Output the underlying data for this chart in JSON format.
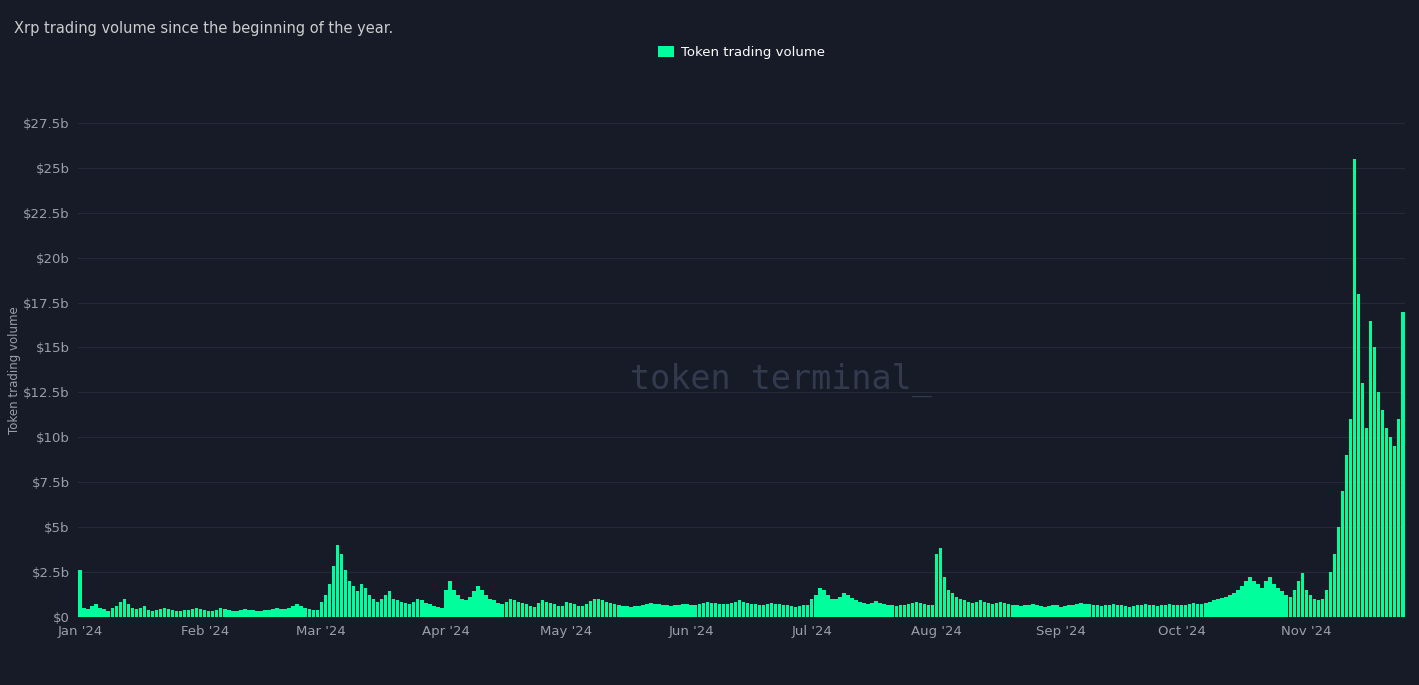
{
  "title": "Xrp trading volume since the beginning of the year.",
  "ylabel": "Token trading volume",
  "legend_label": "Token trading volume",
  "bar_color": "#00FF9C",
  "bg_color": "#161B27",
  "ax_bg_color": "#161B27",
  "text_color": "#9B9EAB",
  "title_color": "#cccccc",
  "grid_color": "#252A38",
  "watermark": "token terminal_",
  "ylim": [
    0,
    27500000000
  ],
  "yticks": [
    0,
    2500000000,
    5000000000,
    7500000000,
    10000000000,
    12500000000,
    15000000000,
    17500000000,
    20000000000,
    22500000000,
    25000000000,
    27500000000
  ],
  "ytick_labels": [
    "$0",
    "$2.5b",
    "$5b",
    "$7.5b",
    "$10b",
    "$12.5b",
    "$15b",
    "$17.5b",
    "$20b",
    "$22.5b",
    "$25b",
    "$27.5b"
  ],
  "values": [
    2600000000,
    500000000,
    400000000,
    600000000,
    700000000,
    500000000,
    400000000,
    300000000,
    500000000,
    600000000,
    800000000,
    1000000000,
    700000000,
    500000000,
    400000000,
    450000000,
    600000000,
    350000000,
    300000000,
    350000000,
    400000000,
    500000000,
    400000000,
    350000000,
    300000000,
    280000000,
    350000000,
    380000000,
    400000000,
    450000000,
    420000000,
    350000000,
    320000000,
    300000000,
    380000000,
    500000000,
    400000000,
    350000000,
    320000000,
    300000000,
    350000000,
    400000000,
    380000000,
    350000000,
    320000000,
    300000000,
    350000000,
    380000000,
    400000000,
    450000000,
    420000000,
    400000000,
    500000000,
    600000000,
    700000000,
    600000000,
    480000000,
    400000000,
    380000000,
    350000000,
    800000000,
    1200000000,
    1800000000,
    2800000000,
    4000000000,
    3500000000,
    2600000000,
    2000000000,
    1700000000,
    1400000000,
    1800000000,
    1600000000,
    1200000000,
    1000000000,
    800000000,
    1000000000,
    1200000000,
    1400000000,
    1000000000,
    900000000,
    800000000,
    750000000,
    700000000,
    800000000,
    1000000000,
    900000000,
    750000000,
    700000000,
    600000000,
    550000000,
    500000000,
    1500000000,
    2000000000,
    1500000000,
    1200000000,
    1000000000,
    900000000,
    1100000000,
    1400000000,
    1700000000,
    1500000000,
    1200000000,
    1000000000,
    900000000,
    750000000,
    700000000,
    800000000,
    1000000000,
    900000000,
    800000000,
    750000000,
    700000000,
    600000000,
    550000000,
    750000000,
    900000000,
    800000000,
    750000000,
    700000000,
    600000000,
    580000000,
    800000000,
    750000000,
    700000000,
    600000000,
    580000000,
    700000000,
    850000000,
    1000000000,
    950000000,
    900000000,
    800000000,
    750000000,
    700000000,
    650000000,
    600000000,
    580000000,
    550000000,
    580000000,
    600000000,
    650000000,
    700000000,
    750000000,
    720000000,
    700000000,
    650000000,
    620000000,
    580000000,
    620000000,
    650000000,
    700000000,
    720000000,
    650000000,
    620000000,
    700000000,
    750000000,
    820000000,
    780000000,
    750000000,
    720000000,
    700000000,
    700000000,
    750000000,
    820000000,
    900000000,
    820000000,
    750000000,
    720000000,
    700000000,
    650000000,
    620000000,
    700000000,
    750000000,
    720000000,
    700000000,
    650000000,
    620000000,
    580000000,
    550000000,
    580000000,
    620000000,
    650000000,
    1000000000,
    1200000000,
    1600000000,
    1500000000,
    1200000000,
    1000000000,
    950000000,
    1100000000,
    1300000000,
    1200000000,
    1050000000,
    900000000,
    820000000,
    750000000,
    700000000,
    750000000,
    850000000,
    750000000,
    700000000,
    650000000,
    620000000,
    580000000,
    620000000,
    650000000,
    700000000,
    750000000,
    820000000,
    750000000,
    700000000,
    650000000,
    620000000,
    3500000000,
    3800000000,
    2200000000,
    1500000000,
    1300000000,
    1100000000,
    950000000,
    900000000,
    820000000,
    750000000,
    820000000,
    900000000,
    820000000,
    750000000,
    700000000,
    750000000,
    820000000,
    750000000,
    700000000,
    650000000,
    620000000,
    580000000,
    620000000,
    650000000,
    700000000,
    620000000,
    580000000,
    550000000,
    580000000,
    620000000,
    650000000,
    550000000,
    580000000,
    620000000,
    650000000,
    700000000,
    750000000,
    720000000,
    700000000,
    650000000,
    620000000,
    580000000,
    620000000,
    650000000,
    700000000,
    650000000,
    620000000,
    580000000,
    550000000,
    580000000,
    620000000,
    650000000,
    700000000,
    650000000,
    620000000,
    580000000,
    620000000,
    650000000,
    700000000,
    650000000,
    620000000,
    620000000,
    650000000,
    700000000,
    750000000,
    720000000,
    700000000,
    750000000,
    820000000,
    900000000,
    950000000,
    1050000000,
    1100000000,
    1200000000,
    1300000000,
    1500000000,
    1700000000,
    2000000000,
    2200000000,
    2000000000,
    1800000000,
    1600000000,
    2000000000,
    2200000000,
    1800000000,
    1600000000,
    1400000000,
    1200000000,
    1100000000,
    1500000000,
    2000000000,
    2400000000,
    1500000000,
    1200000000,
    1000000000,
    900000000,
    1000000000,
    1500000000,
    2500000000,
    3500000000,
    5000000000,
    7000000000,
    9000000000,
    11000000000,
    25500000000,
    18000000000,
    13000000000,
    10500000000,
    16500000000,
    15000000000,
    12500000000,
    11500000000,
    10500000000,
    10000000000,
    9500000000,
    11000000000,
    17000000000
  ],
  "month_tick_positions": [
    0,
    31,
    60,
    91,
    121,
    152,
    182,
    213,
    244,
    274,
    305
  ],
  "month_tick_labels": [
    "Jan '24",
    "Feb '24",
    "Mar '24",
    "Apr '24",
    "May '24",
    "Jun '24",
    "Jul '24",
    "Aug '24",
    "Sep '24",
    "Oct '24",
    "Nov '24"
  ]
}
